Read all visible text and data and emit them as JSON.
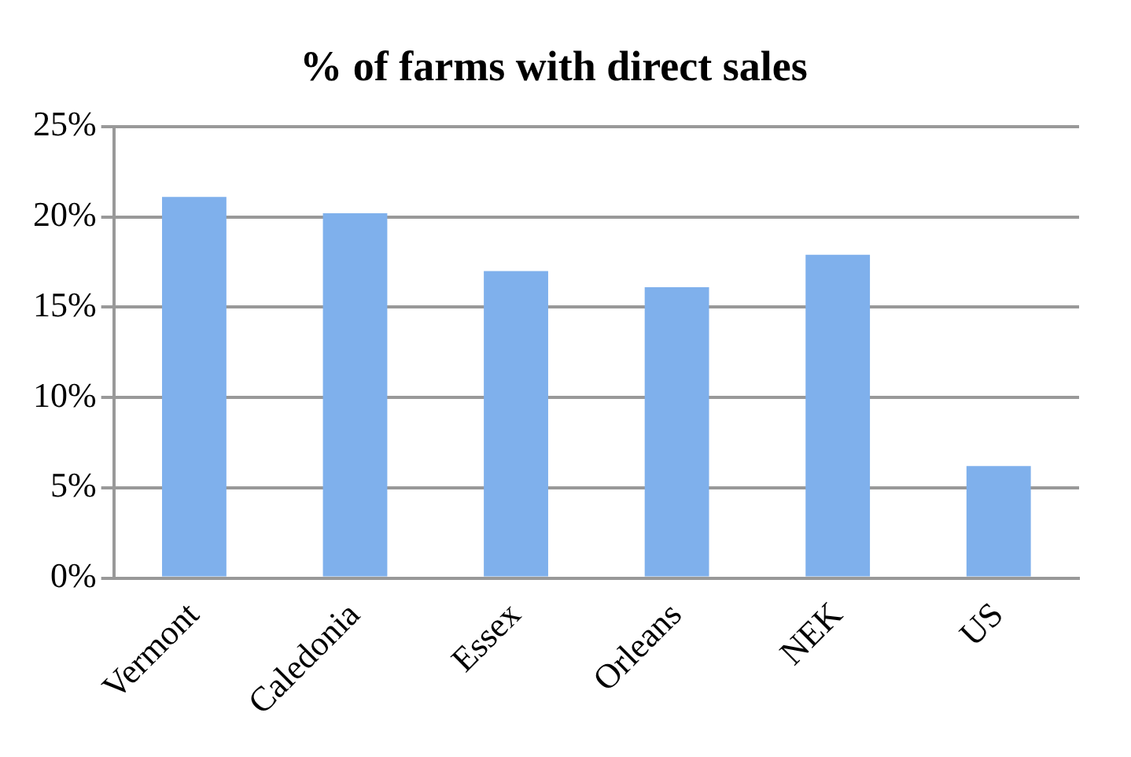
{
  "chart_data": {
    "type": "bar",
    "title": "% of farms with direct sales",
    "categories": [
      "Vermont",
      "Caledonia",
      "Essex",
      "Orleans",
      "NEK",
      "US"
    ],
    "values": [
      21.1,
      20.2,
      17.0,
      16.1,
      17.9,
      6.2
    ],
    "color": "#7fb0ec",
    "ylim": [
      0,
      25
    ],
    "yticks": [
      {
        "value": 0,
        "label": "0%"
      },
      {
        "value": 5,
        "label": "5%"
      },
      {
        "value": 10,
        "label": "10%"
      },
      {
        "value": 15,
        "label": "15%"
      },
      {
        "value": 20,
        "label": "20%"
      },
      {
        "value": 25,
        "label": "25%"
      }
    ],
    "grid": "y",
    "legend": false
  }
}
